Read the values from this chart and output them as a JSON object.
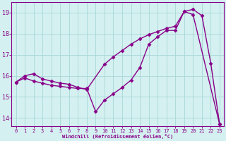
{
  "xlabel": "Windchill (Refroidissement éolien,°C)",
  "bg_color": "#d4f0f0",
  "line_color": "#880088",
  "xlim": [
    -0.5,
    23.5
  ],
  "ylim": [
    13.6,
    19.5
  ],
  "xticks": [
    0,
    1,
    2,
    3,
    4,
    5,
    6,
    7,
    8,
    9,
    10,
    11,
    12,
    13,
    14,
    15,
    16,
    17,
    18,
    19,
    20,
    21,
    22,
    23
  ],
  "yticks": [
    14,
    15,
    16,
    17,
    18,
    19
  ],
  "series1_x": [
    0,
    1,
    2,
    3,
    4,
    5,
    6,
    7,
    8,
    10,
    11,
    12,
    13,
    14,
    15,
    16,
    17,
    18,
    19,
    20,
    23
  ],
  "series1_y": [
    15.7,
    16.0,
    16.1,
    15.85,
    15.75,
    15.65,
    15.6,
    15.45,
    15.35,
    16.55,
    16.9,
    17.2,
    17.5,
    17.75,
    17.95,
    18.1,
    18.25,
    18.35,
    19.05,
    18.9,
    13.7
  ],
  "series2_x": [
    0,
    1,
    2,
    3,
    4,
    5,
    6,
    7,
    8,
    9,
    10,
    11,
    12,
    13,
    14,
    15,
    16,
    17,
    18,
    19,
    20,
    21,
    22,
    23
  ],
  "series2_y": [
    15.7,
    15.9,
    15.75,
    15.65,
    15.55,
    15.5,
    15.45,
    15.4,
    15.4,
    14.3,
    14.85,
    15.15,
    15.45,
    15.8,
    16.4,
    17.5,
    17.85,
    18.15,
    18.15,
    19.05,
    19.15,
    18.85,
    16.6,
    13.7
  ],
  "grid_color": "#a8d8d8",
  "marker": "D",
  "markersize": 2.5,
  "linewidth": 1.0
}
